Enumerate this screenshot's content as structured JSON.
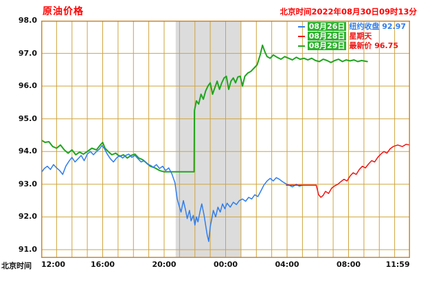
{
  "header": {
    "title": "原油价格",
    "timestamp": "北京时间2022年08月30日09时13分"
  },
  "axis": {
    "x_label": "北京时间",
    "x_ticks": [
      "12:00",
      "16:00",
      "20:00",
      "00:00",
      "04:00",
      "08:00",
      "11:59"
    ],
    "x_tick_hours": [
      0,
      4,
      8,
      12,
      16,
      20,
      23.983
    ],
    "y_ticks": [
      "98.0",
      "97.0",
      "96.0",
      "95.0",
      "94.0",
      "93.0",
      "92.0",
      "91.0"
    ]
  },
  "legend": [
    {
      "key": "aug26",
      "date": "08月26日",
      "note": "纽约收盘 92.97",
      "color": "#2f7ded",
      "note_color": "#2f7ded"
    },
    {
      "key": "aug28",
      "date": "08月28日",
      "note": "星期天",
      "color": "#f01414",
      "note_color": "#f01414"
    },
    {
      "key": "aug29",
      "date": "08月29日",
      "note": "最新价 96.75",
      "color": "#1fa51f",
      "note_color": "#f01414"
    }
  ],
  "style": {
    "plot_bg": "#ffffff",
    "band_color": "#dcdcdc",
    "grid_color": "#cfa43e",
    "frame_color": "#c9882e",
    "title_color": "#ff0000"
  },
  "chart_data": {
    "type": "line",
    "title": "原油价格",
    "xlabel": "北京时间",
    "ylabel": "",
    "x_start_time": "12:00",
    "x_end_time": "11:59",
    "x_range_hours": [
      0,
      24
    ],
    "ylim": [
      91.0,
      98.0
    ],
    "grid": true,
    "legend_position": "top-right",
    "shaded_band_hours": [
      8.75,
      13.0
    ],
    "series": [
      {
        "key": "aug29",
        "name": "08月29日",
        "label": "最新价 96.75",
        "color": "#1fa51f",
        "width": 2,
        "points": [
          [
            0,
            94.35
          ],
          [
            0.25,
            94.28
          ],
          [
            0.5,
            94.3
          ],
          [
            0.75,
            94.15
          ],
          [
            1,
            94.1
          ],
          [
            1.25,
            94.2
          ],
          [
            1.5,
            94.05
          ],
          [
            1.75,
            93.95
          ],
          [
            2,
            94.05
          ],
          [
            2.25,
            93.9
          ],
          [
            2.5,
            93.98
          ],
          [
            2.75,
            93.92
          ],
          [
            3,
            94.0
          ],
          [
            3.3,
            94.1
          ],
          [
            3.6,
            94.05
          ],
          [
            3.85,
            94.2
          ],
          [
            4.0,
            94.28
          ],
          [
            4.15,
            94.1
          ],
          [
            4.4,
            93.98
          ],
          [
            4.6,
            93.9
          ],
          [
            4.85,
            93.95
          ],
          [
            5.1,
            93.85
          ],
          [
            5.35,
            93.9
          ],
          [
            5.6,
            93.8
          ],
          [
            5.85,
            93.88
          ],
          [
            6.1,
            93.92
          ],
          [
            6.35,
            93.8
          ],
          [
            6.6,
            93.75
          ],
          [
            6.85,
            93.65
          ],
          [
            7.1,
            93.55
          ],
          [
            7.4,
            93.5
          ],
          [
            7.7,
            93.42
          ],
          [
            8.0,
            93.38
          ],
          [
            9.95,
            93.38
          ],
          [
            9.97,
            95.25
          ],
          [
            10.1,
            95.55
          ],
          [
            10.25,
            95.45
          ],
          [
            10.4,
            95.75
          ],
          [
            10.55,
            95.6
          ],
          [
            10.7,
            95.85
          ],
          [
            10.85,
            96.0
          ],
          [
            11.0,
            96.1
          ],
          [
            11.15,
            95.75
          ],
          [
            11.3,
            95.95
          ],
          [
            11.45,
            96.15
          ],
          [
            11.6,
            95.9
          ],
          [
            11.75,
            96.1
          ],
          [
            11.9,
            96.25
          ],
          [
            12.05,
            96.3
          ],
          [
            12.2,
            95.9
          ],
          [
            12.35,
            96.15
          ],
          [
            12.5,
            96.25
          ],
          [
            12.65,
            96.1
          ],
          [
            12.8,
            96.28
          ],
          [
            12.95,
            96.3
          ],
          [
            13.1,
            96.0
          ],
          [
            13.25,
            96.3
          ],
          [
            13.45,
            96.4
          ],
          [
            13.65,
            96.45
          ],
          [
            13.85,
            96.55
          ],
          [
            14.05,
            96.65
          ],
          [
            14.25,
            96.95
          ],
          [
            14.4,
            97.25
          ],
          [
            14.55,
            97.05
          ],
          [
            14.7,
            96.9
          ],
          [
            14.9,
            96.85
          ],
          [
            15.1,
            96.95
          ],
          [
            15.35,
            96.88
          ],
          [
            15.6,
            96.82
          ],
          [
            15.85,
            96.9
          ],
          [
            16.1,
            96.85
          ],
          [
            16.35,
            96.8
          ],
          [
            16.6,
            96.88
          ],
          [
            16.85,
            96.82
          ],
          [
            17.1,
            96.85
          ],
          [
            17.35,
            96.8
          ],
          [
            17.6,
            96.85
          ],
          [
            17.85,
            96.78
          ],
          [
            18.1,
            96.75
          ],
          [
            18.35,
            96.82
          ],
          [
            18.6,
            96.78
          ],
          [
            18.85,
            96.72
          ],
          [
            19.1,
            96.78
          ],
          [
            19.35,
            96.82
          ],
          [
            19.6,
            96.75
          ],
          [
            19.85,
            96.8
          ],
          [
            20.1,
            96.77
          ],
          [
            20.35,
            96.8
          ],
          [
            20.6,
            96.75
          ],
          [
            20.85,
            96.78
          ],
          [
            21.1,
            96.76
          ],
          [
            21.22,
            96.75
          ]
        ]
      },
      {
        "key": "aug26",
        "name": "08月26日",
        "label": "纽约收盘 92.97",
        "color": "#2f7ded",
        "width": 1.5,
        "points": [
          [
            0,
            93.35
          ],
          [
            0.2,
            93.48
          ],
          [
            0.4,
            93.55
          ],
          [
            0.6,
            93.45
          ],
          [
            0.8,
            93.6
          ],
          [
            1.0,
            93.5
          ],
          [
            1.2,
            93.42
          ],
          [
            1.4,
            93.3
          ],
          [
            1.6,
            93.55
          ],
          [
            1.8,
            93.7
          ],
          [
            2.0,
            93.82
          ],
          [
            2.2,
            93.68
          ],
          [
            2.4,
            93.78
          ],
          [
            2.6,
            93.88
          ],
          [
            2.8,
            93.72
          ],
          [
            3.0,
            93.92
          ],
          [
            3.2,
            94.0
          ],
          [
            3.4,
            93.9
          ],
          [
            3.6,
            94.0
          ],
          [
            3.8,
            94.08
          ],
          [
            3.95,
            94.18
          ],
          [
            4.1,
            94.1
          ],
          [
            4.3,
            93.92
          ],
          [
            4.5,
            93.78
          ],
          [
            4.7,
            93.68
          ],
          [
            4.9,
            93.8
          ],
          [
            5.1,
            93.88
          ],
          [
            5.3,
            93.8
          ],
          [
            5.5,
            93.88
          ],
          [
            5.7,
            93.92
          ],
          [
            5.9,
            93.82
          ],
          [
            6.1,
            93.88
          ],
          [
            6.3,
            93.78
          ],
          [
            6.5,
            93.68
          ],
          [
            6.7,
            93.72
          ],
          [
            6.9,
            93.62
          ],
          [
            7.1,
            93.58
          ],
          [
            7.3,
            93.52
          ],
          [
            7.5,
            93.6
          ],
          [
            7.7,
            93.48
          ],
          [
            7.9,
            93.55
          ],
          [
            8.1,
            93.42
          ],
          [
            8.3,
            93.5
          ],
          [
            8.5,
            93.32
          ],
          [
            8.7,
            93.05
          ],
          [
            8.85,
            92.55
          ],
          [
            9.0,
            92.3
          ],
          [
            9.1,
            92.15
          ],
          [
            9.25,
            92.5
          ],
          [
            9.4,
            92.2
          ],
          [
            9.5,
            91.95
          ],
          [
            9.65,
            92.2
          ],
          [
            9.75,
            91.88
          ],
          [
            9.9,
            92.05
          ],
          [
            10.0,
            91.75
          ],
          [
            10.1,
            92.0
          ],
          [
            10.2,
            91.85
          ],
          [
            10.35,
            92.2
          ],
          [
            10.45,
            92.4
          ],
          [
            10.6,
            92.05
          ],
          [
            10.7,
            91.75
          ],
          [
            10.8,
            91.45
          ],
          [
            10.9,
            91.25
          ],
          [
            11.0,
            91.7
          ],
          [
            11.1,
            91.95
          ],
          [
            11.2,
            92.2
          ],
          [
            11.35,
            92.0
          ],
          [
            11.5,
            92.3
          ],
          [
            11.65,
            92.15
          ],
          [
            11.8,
            92.4
          ],
          [
            11.95,
            92.25
          ],
          [
            12.1,
            92.42
          ],
          [
            12.3,
            92.3
          ],
          [
            12.5,
            92.45
          ],
          [
            12.7,
            92.38
          ],
          [
            12.9,
            92.5
          ],
          [
            13.1,
            92.55
          ],
          [
            13.3,
            92.48
          ],
          [
            13.5,
            92.6
          ],
          [
            13.7,
            92.55
          ],
          [
            13.9,
            92.68
          ],
          [
            14.1,
            92.62
          ],
          [
            14.3,
            92.8
          ],
          [
            14.5,
            92.98
          ],
          [
            14.7,
            93.1
          ],
          [
            14.9,
            93.18
          ],
          [
            15.1,
            93.1
          ],
          [
            15.3,
            93.2
          ],
          [
            15.5,
            93.15
          ],
          [
            15.7,
            93.08
          ],
          [
            15.9,
            93.02
          ],
          [
            16.1,
            92.98
          ],
          [
            16.35,
            92.92
          ],
          [
            16.6,
            93.0
          ],
          [
            16.8,
            92.94
          ],
          [
            17.0,
            92.97
          ]
        ]
      },
      {
        "key": "aug28",
        "name": "08月28日",
        "label": "星期天",
        "color": "#f01414",
        "width": 1.5,
        "points": [
          [
            15.95,
            92.97
          ],
          [
            17.9,
            92.97
          ],
          [
            18.05,
            92.68
          ],
          [
            18.2,
            92.6
          ],
          [
            18.35,
            92.66
          ],
          [
            18.5,
            92.78
          ],
          [
            18.7,
            92.72
          ],
          [
            18.9,
            92.88
          ],
          [
            19.1,
            92.95
          ],
          [
            19.3,
            93.0
          ],
          [
            19.5,
            93.08
          ],
          [
            19.7,
            93.15
          ],
          [
            19.9,
            93.1
          ],
          [
            20.1,
            93.25
          ],
          [
            20.3,
            93.35
          ],
          [
            20.5,
            93.3
          ],
          [
            20.7,
            93.45
          ],
          [
            20.9,
            93.55
          ],
          [
            21.1,
            93.5
          ],
          [
            21.3,
            93.62
          ],
          [
            21.5,
            93.72
          ],
          [
            21.7,
            93.68
          ],
          [
            21.9,
            93.82
          ],
          [
            22.1,
            93.92
          ],
          [
            22.3,
            94.0
          ],
          [
            22.5,
            93.95
          ],
          [
            22.7,
            94.08
          ],
          [
            22.9,
            94.15
          ],
          [
            23.2,
            94.2
          ],
          [
            23.5,
            94.15
          ],
          [
            23.75,
            94.22
          ],
          [
            23.98,
            94.2
          ]
        ]
      }
    ]
  }
}
